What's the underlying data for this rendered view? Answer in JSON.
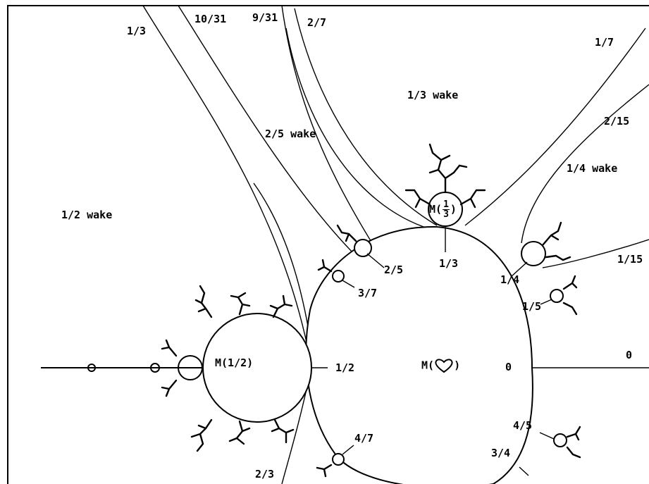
{
  "boundary_angles": {
    "a_1_3_top": "1/3",
    "a_10_31": "10/31",
    "a_9_31": "9/31",
    "a_2_7": "2/7",
    "a_1_7": "1/7",
    "a_2_15": "2/15",
    "a_1_15": "1/15",
    "a_0_right": "0",
    "a_2_3": "2/3"
  },
  "wakes": {
    "w_1_3": "1/3 wake",
    "w_2_5": "2/5 wake",
    "w_1_4": "1/4 wake",
    "w_1_2": "1/2 wake"
  },
  "bulb_labels": {
    "b_2_5": "2/5",
    "b_1_3": "1/3",
    "b_1_4": "1/4",
    "b_3_7": "3/7",
    "b_1_5": "1/5",
    "b_1_2": "1/2",
    "b_0": "0",
    "b_4_5": "4/5",
    "b_4_7": "4/7",
    "b_3_4": "3/4"
  },
  "component_labels": {
    "m_half": "M(1/2)",
    "m_heart_prefix": "M(",
    "m_heart_suffix": ")",
    "m_third_prefix": "M(",
    "m_third_num": "1",
    "m_third_den": "3",
    "m_third_suffix": ")"
  },
  "colors": {
    "ink": "#000000",
    "paper": "#ffffff"
  }
}
